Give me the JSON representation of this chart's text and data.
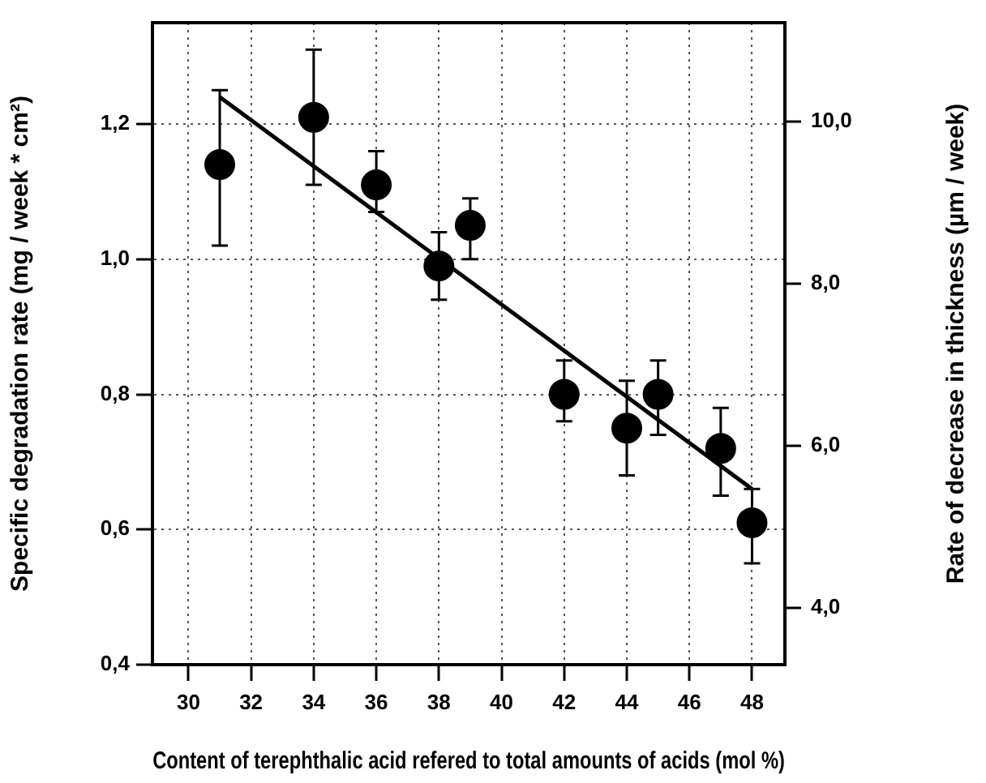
{
  "chart_data": {
    "type": "scatter",
    "xlabel": "Content of terephthalic acid refered to total amounts of acids (mol %)",
    "ylabel": "Specific degradation rate (mg / week * cm²)",
    "y2label": "Rate of decrease in thickness (µm / week)",
    "xlim": [
      28.85,
      49.05
    ],
    "xticks": [
      30,
      32,
      34,
      36,
      38,
      40,
      42,
      44,
      46,
      48
    ],
    "ylim": [
      0.4,
      1.35
    ],
    "yticks": [
      {
        "value": 0.4,
        "label": "0,4"
      },
      {
        "value": 0.6,
        "label": "0,6"
      },
      {
        "value": 0.8,
        "label": "0,8"
      },
      {
        "value": 1.0,
        "label": "1,0"
      },
      {
        "value": 1.2,
        "label": "1,2"
      }
    ],
    "y2lim": [
      3.3,
      11.22
    ],
    "y2ticks": [
      {
        "value": 4,
        "label": "4,0"
      },
      {
        "value": 6,
        "label": "6,0"
      },
      {
        "value": 8,
        "label": "8,0"
      },
      {
        "value": 10,
        "label": "10,0"
      }
    ],
    "grid": true,
    "legend": false,
    "marker": "circle",
    "series": [
      {
        "color": "#000000",
        "x": [
          31,
          34,
          36,
          38,
          39,
          42,
          44,
          45,
          47,
          48
        ],
        "values": [
          1.14,
          1.21,
          1.11,
          0.99,
          1.05,
          0.8,
          0.75,
          0.8,
          0.72,
          0.61
        ],
        "errors": [
          [
            1.02,
            1.25
          ],
          [
            1.11,
            1.31
          ],
          [
            1.07,
            1.16
          ],
          [
            0.94,
            1.04
          ],
          [
            1.0,
            1.09
          ],
          [
            0.76,
            0.85
          ],
          [
            0.68,
            0.82
          ],
          [
            0.74,
            0.85
          ],
          [
            0.65,
            0.78
          ],
          [
            0.55,
            0.66
          ]
        ]
      },
      {
        "type": "line",
        "color": "#000000",
        "x": [
          31,
          48
        ],
        "values": [
          1.24,
          0.66
        ],
        "marker": "none",
        "line_style": "solid"
      }
    ]
  }
}
